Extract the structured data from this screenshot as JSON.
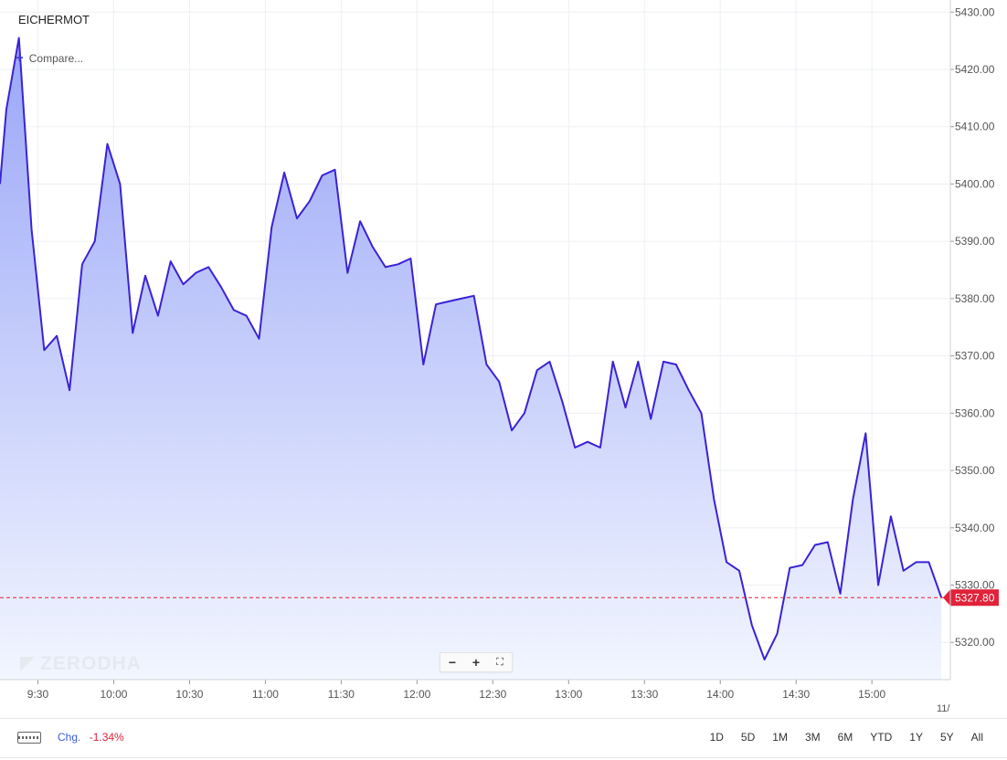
{
  "symbol": "EICHERMOT",
  "compare_label": "Compare...",
  "watermark": "ZERODHA",
  "zoom": {
    "minus": "−",
    "plus": "+",
    "fit": "⛶"
  },
  "footer": {
    "change_label": "Chg.",
    "change_value": "-1.34%",
    "ranges": [
      "1D",
      "5D",
      "1M",
      "3M",
      "6M",
      "YTD",
      "1Y",
      "5Y",
      "All"
    ]
  },
  "colors": {
    "line": "#3a22d6",
    "fill_top": "#9aa6f7",
    "fill_bottom": "#f2f6ff",
    "price_marker": "#e0223a",
    "grid": "#eef0f4"
  },
  "chart_data": {
    "type": "area",
    "x_tick_labels": [
      "9:30",
      "10:00",
      "10:30",
      "11:00",
      "11:30",
      "12:00",
      "12:30",
      "13:00",
      "13:30",
      "14:00",
      "14:30",
      "15:00"
    ],
    "x_tick_minutes": [
      570,
      600,
      630,
      660,
      690,
      720,
      750,
      780,
      810,
      840,
      870,
      900
    ],
    "x_edge_label": "11/",
    "y_tick_labels": [
      "5430.00",
      "5420.00",
      "5410.00",
      "5400.00",
      "5390.00",
      "5380.00",
      "5370.00",
      "5360.00",
      "5350.00",
      "5340.00",
      "5330.00",
      "5320.00"
    ],
    "y_ticks": [
      5430,
      5420,
      5410,
      5400,
      5390,
      5380,
      5370,
      5360,
      5350,
      5340,
      5330,
      5320
    ],
    "ylim": [
      5313.5,
      5431
    ],
    "xlim": [
      555,
      928.5
    ],
    "current_price": 5327.8,
    "current_price_label": "5327.80",
    "series": [
      {
        "x": [
          555,
          557.5,
          562.5,
          567.5,
          572.5,
          577.5,
          582.5,
          587.5,
          592.5,
          597.5,
          602.5,
          607.5,
          612.5,
          617.5,
          622.5,
          627.5,
          632.5,
          637.5,
          642.5,
          647.5,
          652.5,
          657.5,
          662.5,
          667.5,
          672.5,
          677.5,
          682.5,
          687.5,
          692.5,
          697.5,
          702.5,
          707.5,
          712.5,
          717.5,
          722.5,
          727.5,
          732.5,
          737.5,
          742.5,
          747.5,
          752.5,
          757.5,
          762.5,
          767.5,
          772.5,
          777.5,
          782.5,
          787.5,
          792.5,
          797.5,
          802.5,
          807.5,
          812.5,
          817.5,
          822.5,
          827.5,
          832.5,
          837.5,
          842.5,
          847.5,
          852.5,
          857.5,
          862.5,
          867.5,
          872.5,
          877.5,
          882.5,
          887.5,
          892.5,
          897.5,
          902.5,
          907.5,
          912.5,
          917.5,
          922.5,
          927.5
        ],
        "y": [
          5400,
          5413,
          5425.5,
          5392,
          5371,
          5373.5,
          5364,
          5386,
          5390,
          5407,
          5400,
          5374,
          5384,
          5377,
          5386.5,
          5382.5,
          5384.5,
          5385.5,
          5382,
          5378,
          5377,
          5373,
          5392.5,
          5402,
          5394,
          5397,
          5401.5,
          5402.5,
          5384.5,
          5393.5,
          5389,
          5385.5,
          5386,
          5387,
          5368.5,
          5379,
          5379.5,
          5380,
          5380.5,
          5368.5,
          5365.5,
          5357,
          5360,
          5367.5,
          5369,
          5362,
          5354,
          5355,
          5354,
          5369,
          5361,
          5369,
          5359,
          5369,
          5368.5,
          5364,
          5360,
          5345,
          5334,
          5332.5,
          5323,
          5317,
          5321.5,
          5333,
          5333.5,
          5337,
          5337.5,
          5328.5,
          5345,
          5356.5,
          5330,
          5342,
          5332.5,
          5334,
          5334,
          5327.8
        ]
      }
    ]
  }
}
